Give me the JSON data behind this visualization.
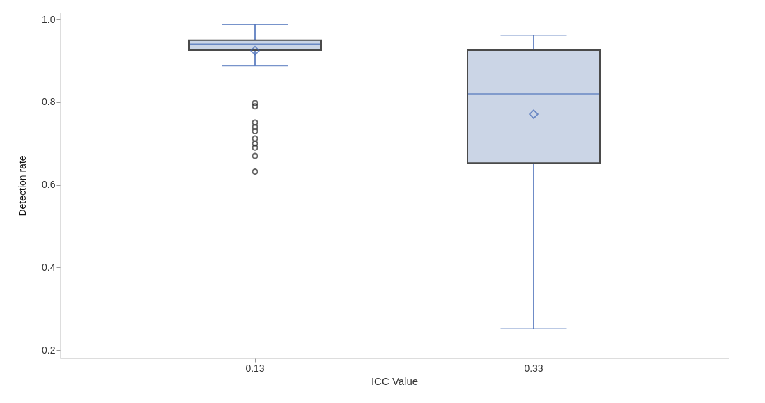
{
  "chart_data": {
    "type": "box",
    "xlabel": "ICC Value",
    "ylabel": "Detection rate",
    "categories": [
      "0.13",
      "0.33"
    ],
    "series": [
      {
        "color": "#cbd5e6",
        "boxes": [
          {
            "low": 0.888,
            "q1": 0.926,
            "median": 0.941,
            "q3": 0.95,
            "high": 0.988,
            "mean": 0.925,
            "outliers": [
              0.798,
              0.79,
              0.751,
              0.74,
              0.73,
              0.712,
              0.7,
              0.69,
              0.67,
              0.632
            ]
          },
          {
            "low": 0.252,
            "q1": 0.653,
            "median": 0.82,
            "q3": 0.926,
            "high": 0.962,
            "mean": 0.771
          }
        ]
      }
    ],
    "ylim": [
      0.18,
      1.017
    ],
    "yticks": [
      0.2,
      0.4,
      0.6,
      0.8,
      {
        "value": 1,
        "label": "1.0"
      }
    ],
    "grid": false
  }
}
